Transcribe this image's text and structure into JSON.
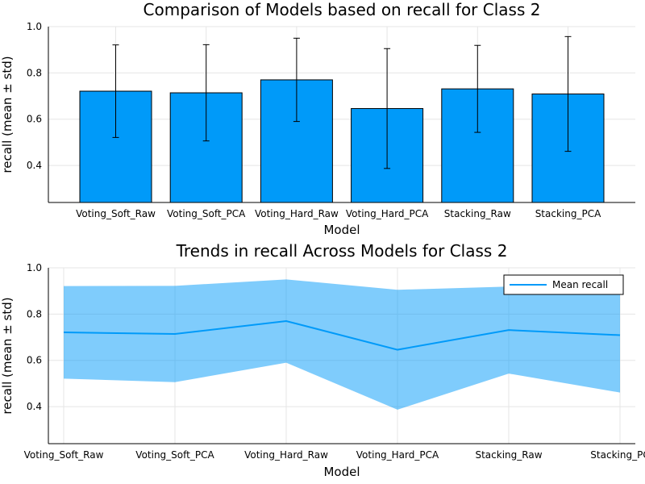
{
  "chart_data": [
    {
      "type": "bar",
      "title": "Comparison of Models based on recall for Class 2",
      "xlabel": "Model",
      "ylabel": "recall (mean ± std)",
      "categories": [
        "Voting_Soft_Raw",
        "Voting_Soft_PCA",
        "Voting_Hard_Raw",
        "Voting_Hard_PCA",
        "Stacking_Raw",
        "Stacking_PCA"
      ],
      "values": [
        0.721,
        0.714,
        0.77,
        0.646,
        0.731,
        0.709
      ],
      "errors": [
        0.2,
        0.208,
        0.18,
        0.259,
        0.188,
        0.248
      ],
      "ylim": [
        0.24,
        1.0
      ],
      "yticks": [
        "0.4",
        "0.6",
        "0.8",
        "1.0"
      ],
      "grid": true,
      "color": "#009AF9"
    },
    {
      "type": "line",
      "title": "Trends in recall Across Models for Class 2",
      "xlabel": "Model",
      "ylabel": "recall (mean ± std)",
      "categories": [
        "Voting_Soft_Raw",
        "Voting_Soft_PCA",
        "Voting_Hard_Raw",
        "Voting_Hard_PCA",
        "Stacking_Raw",
        "Stacking_PC"
      ],
      "series": [
        {
          "name": "Mean recall",
          "values": [
            0.721,
            0.714,
            0.77,
            0.646,
            0.731,
            0.709
          ],
          "lower": [
            0.521,
            0.506,
            0.59,
            0.387,
            0.543,
            0.461
          ],
          "upper": [
            0.921,
            0.922,
            0.95,
            0.905,
            0.919,
            0.957
          ]
        }
      ],
      "ylim": [
        0.24,
        1.0
      ],
      "yticks": [
        "0.4",
        "0.6",
        "0.8",
        "1.0"
      ],
      "grid": true,
      "legend": "top-right",
      "color": "#009AF9"
    }
  ]
}
